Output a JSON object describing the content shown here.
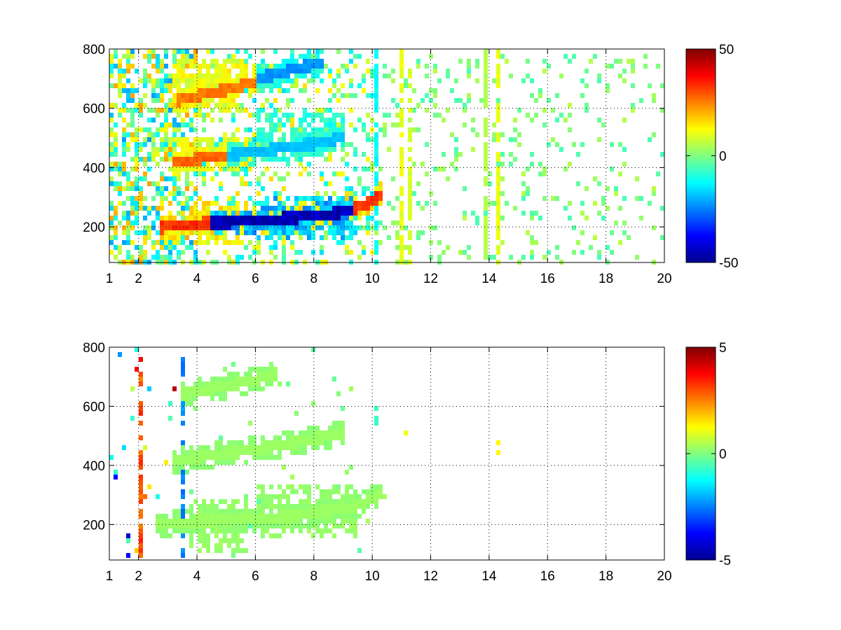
{
  "chart_data": [
    {
      "type": "heatmap",
      "title": "",
      "xlabel": "",
      "ylabel": "",
      "xlim": [
        1,
        20
      ],
      "ylim": [
        80,
        800
      ],
      "xticks": [
        1,
        2,
        4,
        6,
        8,
        10,
        12,
        14,
        16,
        18,
        20
      ],
      "yticks": [
        200,
        400,
        600,
        800
      ],
      "grid": true,
      "colormap": "jet",
      "clim": [
        -50,
        50
      ],
      "colorbar_ticks": [
        50,
        0,
        -50
      ],
      "background": "#ffffff",
      "tracks": [
        {
          "x": [
            2.7,
            3.5,
            4.5,
            5.5,
            6.5,
            7.5,
            8.5,
            9.5,
            10.3
          ],
          "y": [
            198,
            206,
            213,
            217,
            222,
            230,
            245,
            262,
            305
          ],
          "value": 35
        },
        {
          "x": [
            4.5,
            5.5,
            6.5,
            7.5,
            8.5,
            9.3
          ],
          "y": [
            212,
            218,
            225,
            232,
            242,
            255
          ],
          "value": -48
        },
        {
          "x": [
            3.2,
            4.0,
            5.0,
            5.9
          ],
          "y": [
            415,
            428,
            440,
            452
          ],
          "value": 30
        },
        {
          "x": [
            5.0,
            6.5,
            8.0,
            9.0
          ],
          "y": [
            440,
            460,
            480,
            500
          ],
          "value": -20
        },
        {
          "x": [
            3.3,
            4.2,
            5.2,
            6.0
          ],
          "y": [
            625,
            645,
            665,
            688
          ],
          "value": 28
        },
        {
          "x": [
            6.0,
            6.8,
            7.5,
            8.3
          ],
          "y": [
            700,
            715,
            735,
            755
          ],
          "value": -25
        }
      ],
      "bands": [
        {
          "x": [
            3.8,
            5.8
          ],
          "y": [
            140,
            290
          ],
          "value": 18
        },
        {
          "x": [
            6.0,
            9.5
          ],
          "y": [
            150,
            300
          ],
          "value": -22
        },
        {
          "x": [
            3.0,
            5.8
          ],
          "y": [
            385,
            500
          ],
          "value": 14
        },
        {
          "x": [
            6.0,
            9.0
          ],
          "y": [
            480,
            590
          ],
          "value": -12
        },
        {
          "x": [
            3.2,
            5.8
          ],
          "y": [
            590,
            760
          ],
          "value": 14
        }
      ],
      "noise": [
        {
          "x": [
            1.0,
            4.0
          ],
          "density": 0.55,
          "amplitude": 22
        },
        {
          "x": [
            4.0,
            10.0
          ],
          "density": 0.28,
          "amplitude": 16
        },
        {
          "x": [
            10.0,
            20.0
          ],
          "density": 0.12,
          "amplitude": 6
        }
      ],
      "vertical_streaks": [
        {
          "x": 10.2,
          "y": [
            80,
            800
          ],
          "value": -14
        },
        {
          "x": 11.0,
          "y": [
            80,
            800
          ],
          "value": 12
        },
        {
          "x": 11.3,
          "y": [
            80,
            800
          ],
          "value": 10
        },
        {
          "x": 13.9,
          "y": [
            80,
            800
          ],
          "value": 6
        },
        {
          "x": 14.3,
          "y": [
            80,
            800
          ],
          "value": 12
        }
      ]
    },
    {
      "type": "heatmap",
      "title": "",
      "xlabel": "",
      "ylabel": "",
      "xlim": [
        1,
        20
      ],
      "ylim": [
        80,
        800
      ],
      "xticks": [
        1,
        2,
        4,
        6,
        8,
        10,
        12,
        14,
        16,
        18,
        20
      ],
      "yticks": [
        200,
        400,
        600,
        800
      ],
      "grid": true,
      "colormap": "jet",
      "clim": [
        -5,
        5
      ],
      "colorbar_ticks": [
        5,
        0,
        -5
      ],
      "background": "#ffffff",
      "tracks": [
        {
          "x": [
            2.6,
            3.5,
            4.5,
            5.5,
            6.5,
            7.5,
            8.5,
            9.5,
            10.3
          ],
          "y": [
            198,
            206,
            213,
            217,
            222,
            230,
            245,
            262,
            305
          ],
          "value": 0.3
        },
        {
          "x": [
            3.2,
            4.0,
            5.0,
            6.0,
            7.0,
            8.0,
            9.0
          ],
          "y": [
            415,
            428,
            440,
            455,
            470,
            490,
            510
          ],
          "value": 0.3
        },
        {
          "x": [
            3.5,
            4.2,
            5.2,
            6.0,
            6.8
          ],
          "y": [
            640,
            655,
            670,
            690,
            710
          ],
          "value": 0.3
        }
      ],
      "bands": [
        {
          "x": [
            3.8,
            5.8
          ],
          "y": [
            100,
            290
          ],
          "value": 0.3
        },
        {
          "x": [
            6.0,
            9.5
          ],
          "y": [
            150,
            330
          ],
          "value": 0.3
        }
      ],
      "noise": [
        {
          "x": [
            1.0,
            3.6
          ],
          "density": 0.04,
          "amplitude": 4.5
        },
        {
          "x": [
            3.6,
            10.5
          ],
          "density": 0.02,
          "amplitude": 0.4
        }
      ],
      "vertical_streaks": [
        {
          "x": 2.15,
          "y": [
            190,
            710
          ],
          "value": 4.7
        },
        {
          "x": 2.05,
          "y": [
            80,
            740
          ],
          "value": 3.5
        },
        {
          "x": 2.72,
          "y": [
            80,
            760
          ],
          "value": 3.0
        },
        {
          "x": 3.55,
          "y": [
            80,
            760
          ],
          "value": -3.0
        },
        {
          "x": 10.2,
          "y": [
            540,
            600
          ],
          "value": -0.8
        },
        {
          "x": 11.1,
          "y": [
            500,
            520
          ],
          "value": 1.6
        },
        {
          "x": 14.3,
          "y": [
            440,
            500
          ],
          "value": 1.6
        }
      ]
    }
  ]
}
